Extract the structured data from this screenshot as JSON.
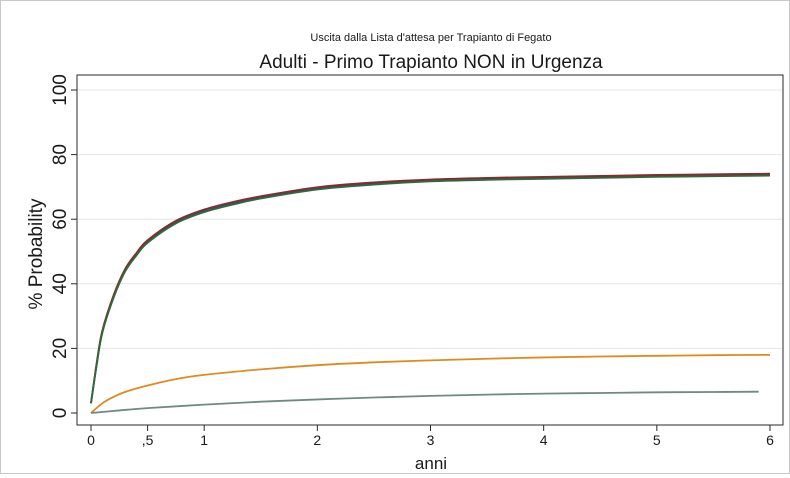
{
  "chart_data": {
    "type": "line",
    "subtitle": "Uscita dalla Lista d'attesa per  Trapianto di Fegato",
    "title": "Adulti - Primo Trapianto NON in Urgenza",
    "xlabel": "anni",
    "ylabel": "% Probability",
    "xlim": [
      0,
      6
    ],
    "ylim": [
      0,
      100
    ],
    "x_ticks": [
      0,
      0.5,
      1,
      2,
      3,
      4,
      5,
      6
    ],
    "x_tick_labels": [
      "0",
      ",5",
      "1",
      "2",
      "3",
      "4",
      "5",
      "6"
    ],
    "y_ticks": [
      0,
      20,
      40,
      60,
      80,
      100
    ],
    "y_tick_labels": [
      "0",
      "20",
      "40",
      "60",
      "80",
      "100"
    ],
    "grid": true,
    "series": [
      {
        "color": "#1f4e8c",
        "x": [
          0,
          0.05,
          0.1,
          0.2,
          0.3,
          0.4,
          0.5,
          0.75,
          1,
          1.25,
          1.5,
          2,
          2.5,
          3,
          3.5,
          4,
          4.5,
          5,
          5.5,
          6
        ],
        "values": [
          3,
          15,
          25,
          36,
          44,
          49,
          53,
          59,
          62.5,
          64.8,
          66.7,
          69.5,
          71,
          72,
          72.5,
          72.8,
          73.1,
          73.4,
          73.6,
          73.8
        ]
      },
      {
        "color": "#8b2a2a",
        "x": [
          0,
          0.05,
          0.1,
          0.2,
          0.3,
          0.4,
          0.5,
          0.75,
          1,
          1.25,
          1.5,
          2,
          2.5,
          3,
          3.5,
          4,
          4.5,
          5,
          5.5,
          6
        ],
        "values": [
          3,
          15.5,
          25.5,
          36.5,
          44.5,
          49.5,
          53.5,
          59.5,
          63,
          65.3,
          67.1,
          69.9,
          71.4,
          72.3,
          72.8,
          73.1,
          73.4,
          73.7,
          73.9,
          74.1
        ]
      },
      {
        "color": "#2e6b3a",
        "x": [
          0,
          0.05,
          0.1,
          0.2,
          0.3,
          0.4,
          0.5,
          0.75,
          1,
          1.25,
          1.5,
          2,
          2.5,
          3,
          3.5,
          4,
          4.5,
          5,
          5.5,
          6
        ],
        "values": [
          3,
          14.8,
          24.8,
          35.7,
          43.7,
          48.7,
          52.7,
          58.7,
          62.2,
          64.5,
          66.4,
          69.2,
          70.7,
          71.7,
          72.2,
          72.5,
          72.8,
          73.1,
          73.3,
          73.5
        ]
      },
      {
        "color": "#e08a1e",
        "x": [
          0,
          0.1,
          0.2,
          0.3,
          0.5,
          0.75,
          1,
          1.5,
          2,
          2.5,
          3,
          3.5,
          4,
          4.5,
          5,
          5.5,
          6
        ],
        "values": [
          0,
          3,
          5,
          6.5,
          8.5,
          10.5,
          11.8,
          13.5,
          14.8,
          15.7,
          16.3,
          16.8,
          17.2,
          17.5,
          17.7,
          17.9,
          18
        ]
      },
      {
        "color": "#6e8a84",
        "x": [
          0,
          0.25,
          0.5,
          1,
          1.5,
          2,
          2.5,
          3,
          3.5,
          4,
          4.5,
          5,
          5.5,
          5.9
        ],
        "values": [
          0,
          0.8,
          1.5,
          2.6,
          3.5,
          4.2,
          4.8,
          5.3,
          5.7,
          6,
          6.2,
          6.4,
          6.5,
          6.6
        ]
      }
    ]
  }
}
